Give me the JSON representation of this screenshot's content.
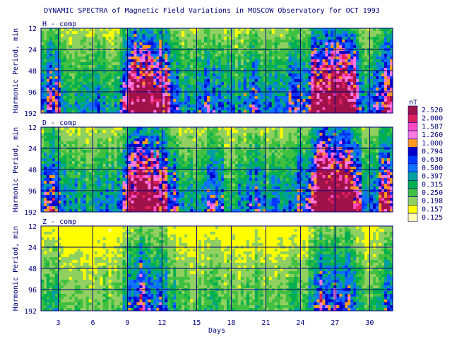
{
  "chart_data": [
    {
      "type": "heatmap",
      "title": "DYNAMIC SPECTRA of Magnetic Field Variations in MOSCOW Observatory for OCT 1993",
      "panels": [
        {
          "label": "H - comp",
          "intensity": 0.72
        },
        {
          "label": "D - comp",
          "intensity": 0.7
        },
        {
          "label": "Z - comp",
          "intensity": 0.35
        }
      ],
      "ylabel": "Harmonic Period, min",
      "yticks": [
        "12",
        "24",
        "48",
        "96",
        "192"
      ],
      "xlabel": "Days",
      "xticks": [
        "3",
        "6",
        "9",
        "12",
        "15",
        "18",
        "21",
        "24",
        "27",
        "30"
      ],
      "xlim": [
        1.5,
        32
      ],
      "colorbar": {
        "unit": "nT",
        "levels": [
          "2.520",
          "2.000",
          "1.587",
          "1.260",
          "1.000",
          "0.794",
          "0.630",
          "0.500",
          "0.397",
          "0.315",
          "0.250",
          "0.198",
          "0.157",
          "0.125"
        ],
        "colors": [
          "#a0124a",
          "#e0205a",
          "#ff4cc4",
          "#ff7ae0",
          "#ff9a20",
          "#0000c8",
          "#0038ff",
          "#1070ff",
          "#00a0a0",
          "#00b050",
          "#40c040",
          "#90d060",
          "#ffff00",
          "#ffffb0"
        ]
      }
    }
  ]
}
